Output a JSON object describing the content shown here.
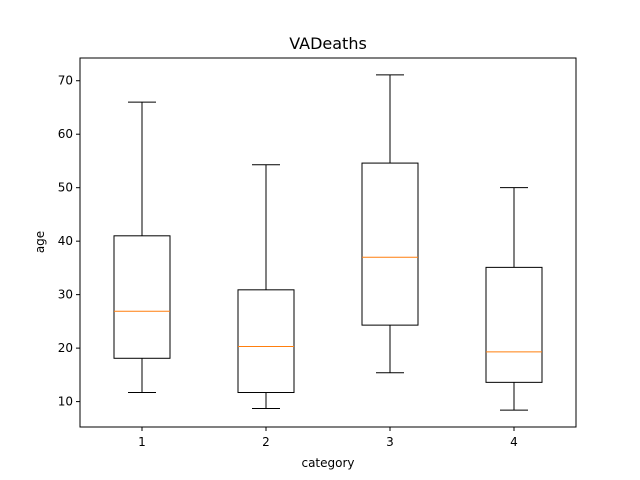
{
  "chart_data": {
    "type": "boxplot",
    "title": "VADeaths",
    "xlabel": "category",
    "ylabel": "age",
    "categories": [
      "1",
      "2",
      "3",
      "4"
    ],
    "boxes": [
      {
        "whislo": 11.7,
        "q1": 18.1,
        "med": 26.9,
        "q3": 41.0,
        "whishi": 66.0
      },
      {
        "whislo": 8.7,
        "q1": 11.7,
        "med": 20.3,
        "q3": 30.9,
        "whishi": 54.3
      },
      {
        "whislo": 15.4,
        "q1": 24.3,
        "med": 37.0,
        "q3": 54.6,
        "whishi": 71.1
      },
      {
        "whislo": 8.4,
        "q1": 13.6,
        "med": 19.3,
        "q3": 35.1,
        "whishi": 50.0
      }
    ],
    "yticks": [
      10,
      20,
      30,
      40,
      50,
      60,
      70
    ],
    "ylim": [
      5.25,
      74.25
    ],
    "xlim": [
      0.5,
      4.5
    ],
    "grid": false,
    "box_color": "#000000",
    "median_color": "#ff7f0e"
  }
}
